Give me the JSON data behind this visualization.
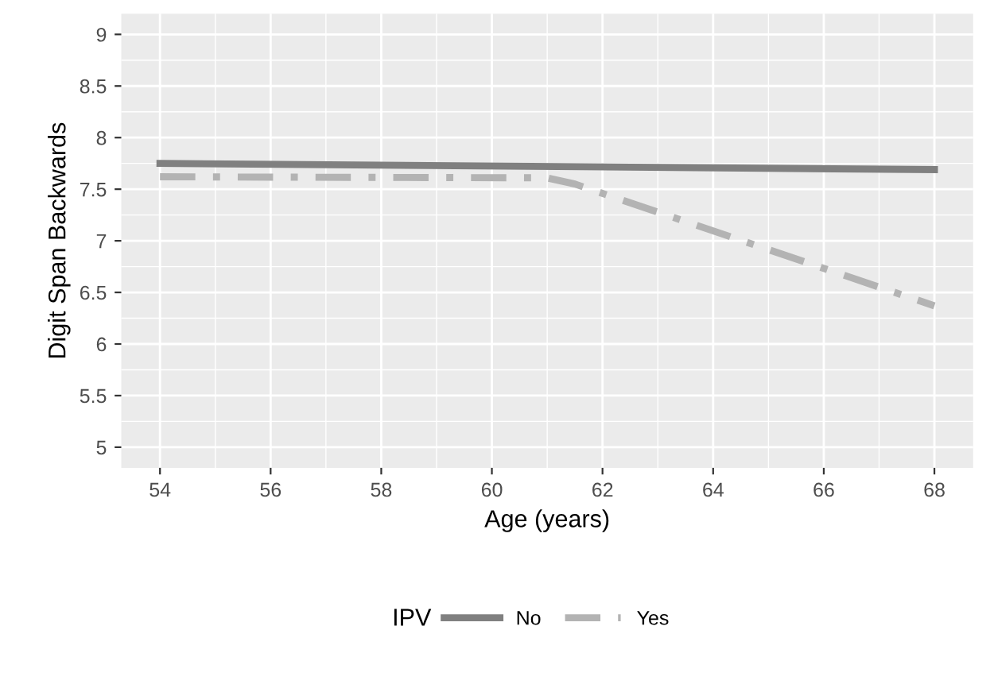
{
  "chart_data": {
    "type": "line",
    "xlabel": "Age (years)",
    "ylabel": "Digit Span Backwards",
    "legend_title": "IPV",
    "series": [
      {
        "name": "No",
        "color": "#808080",
        "line_style": "solid",
        "x": [
          54,
          68
        ],
        "values": [
          7.75,
          7.69
        ]
      },
      {
        "name": "Yes",
        "color": "#b3b3b3",
        "line_style": "dashdot",
        "x": [
          54,
          61,
          61.5,
          68
        ],
        "values": [
          7.62,
          7.61,
          7.55,
          6.37
        ]
      }
    ],
    "xlim": [
      53.3,
      68.7
    ],
    "ylim": [
      4.8,
      9.2
    ],
    "xticks": [
      54,
      56,
      58,
      60,
      62,
      64,
      66,
      68
    ],
    "yticks": [
      5,
      5.5,
      6,
      6.5,
      7,
      7.5,
      8,
      8.5,
      9
    ],
    "grid": true,
    "legend": "bottom"
  }
}
